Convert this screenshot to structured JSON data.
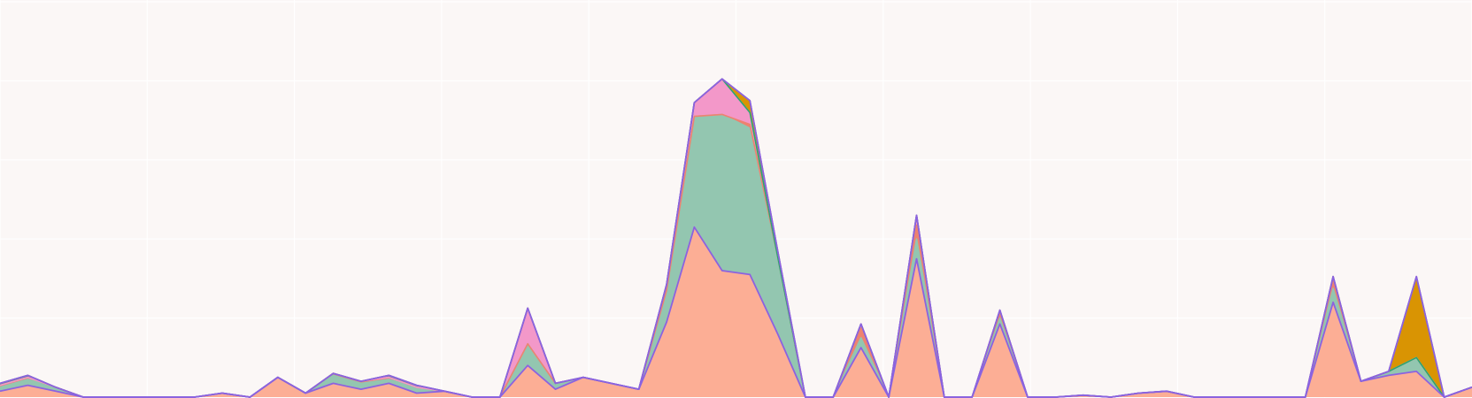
{
  "chart_data": {
    "type": "area",
    "stacked": true,
    "title": "",
    "xlabel": "",
    "ylabel": "",
    "grid": true,
    "legend": "none",
    "x": [
      0,
      1,
      2,
      3,
      4,
      5,
      6,
      7,
      8,
      9,
      10,
      11,
      12,
      13,
      14,
      15,
      16,
      17,
      18,
      19,
      20,
      21,
      22,
      23,
      24,
      25,
      26,
      27,
      28,
      29,
      30,
      31,
      32,
      33,
      34,
      35,
      36,
      37,
      38,
      39,
      40,
      41,
      42,
      43,
      44,
      45,
      46,
      47,
      48,
      49,
      50,
      51,
      52,
      53
    ],
    "xlim": [
      0,
      53
    ],
    "ylim": [
      0,
      100
    ],
    "series": [
      {
        "color": "#fcae95",
        "values": [
          1.5,
          3.0,
          1.5,
          0,
          0,
          0,
          0,
          0,
          1.0,
          0,
          5.0,
          1.0,
          3.5,
          2.0,
          3.5,
          1.0,
          1.5,
          0,
          0,
          8.0,
          2.0,
          5.0,
          3.5,
          2.0,
          19.0,
          43.0,
          32.0,
          31.0,
          16.0,
          0,
          0,
          12.5,
          0,
          35.0,
          0,
          0,
          18.5,
          0,
          0,
          0.5,
          0,
          1.0,
          1.5,
          0,
          0,
          0,
          0,
          0,
          24.0,
          4.0,
          5.5,
          6.5,
          0,
          2.5
        ]
      },
      {
        "color": "#93c6b0",
        "values": [
          1.0,
          1.5,
          1.0,
          0,
          0,
          0,
          0,
          0,
          0,
          0,
          0,
          0,
          2.0,
          1.5,
          1.0,
          1.5,
          0,
          0,
          0,
          5.5,
          1.5,
          0,
          0,
          0,
          8.0,
          28.0,
          39.5,
          37.0,
          19.0,
          0,
          0,
          2.5,
          0,
          5.0,
          0,
          0,
          1.5,
          0,
          0,
          0,
          0,
          0,
          0,
          0,
          0,
          0,
          0,
          0,
          3.5,
          0,
          1.0,
          3.5,
          0,
          0
        ]
      },
      {
        "color": "#ee8270",
        "values": [
          0.5,
          0.5,
          0,
          0,
          0,
          0,
          0,
          0,
          0,
          0,
          0,
          0,
          0.5,
          0.5,
          0.5,
          0,
          0,
          0,
          0,
          0,
          0,
          0,
          0,
          0,
          0,
          0,
          0,
          1.0,
          0.5,
          0,
          0,
          2.5,
          0,
          3.5,
          0,
          0,
          1.5,
          0,
          0,
          0,
          0,
          0,
          0,
          0,
          0,
          0,
          0,
          0,
          2.0,
          0,
          0,
          0,
          0,
          0
        ]
      },
      {
        "color": "#f398c9",
        "values": [
          0,
          0,
          0,
          0,
          0,
          0,
          0,
          0,
          0,
          0,
          0,
          0,
          0,
          0,
          0,
          0,
          0,
          0,
          0,
          9.0,
          0,
          0,
          0,
          0,
          1.5,
          3.5,
          9.0,
          3.0,
          0,
          0,
          0,
          1.0,
          0,
          2.5,
          0,
          0,
          0.5,
          0,
          0,
          0,
          0,
          0,
          0,
          0,
          0,
          0,
          0,
          0,
          1.0,
          0,
          0,
          0,
          0,
          0
        ]
      },
      {
        "color": "#2aa76f",
        "values": [
          0.5,
          0.5,
          0,
          0,
          0,
          0,
          0,
          0,
          0,
          0,
          0,
          0,
          0,
          0,
          0.5,
          0.5,
          0,
          0,
          0,
          0,
          0,
          0,
          0,
          0,
          0,
          0,
          0,
          0,
          0,
          0,
          0,
          0,
          0,
          0,
          0,
          0,
          0,
          0,
          0,
          0,
          0,
          0,
          0,
          0,
          0,
          0,
          0,
          0,
          0,
          0,
          0,
          0,
          0,
          0
        ]
      },
      {
        "color": "#d99403",
        "values": [
          0,
          0,
          0,
          0,
          0,
          0,
          0,
          0,
          0,
          0,
          0,
          0,
          0,
          0,
          0,
          0,
          0,
          0,
          0,
          0,
          0,
          0,
          0,
          0,
          0,
          0,
          0,
          3.0,
          1.5,
          0,
          0,
          0,
          0,
          0,
          0,
          0,
          0,
          0,
          0,
          0,
          0,
          0,
          0,
          0,
          0,
          0,
          0,
          0,
          0,
          0,
          0,
          20.5,
          0,
          0
        ]
      },
      {
        "color": "#a070da",
        "values": [
          0,
          0,
          0,
          0,
          0,
          0,
          0,
          0,
          0,
          0,
          0,
          0,
          0,
          0,
          0,
          0,
          0,
          0,
          0,
          0,
          0,
          0,
          0,
          0,
          0,
          0,
          0,
          0,
          0,
          0,
          0,
          0,
          0,
          0,
          0,
          0,
          0,
          0,
          0,
          0,
          0,
          0,
          0,
          0,
          0,
          0,
          0,
          0,
          0,
          0,
          0,
          0,
          0,
          0
        ]
      }
    ]
  }
}
